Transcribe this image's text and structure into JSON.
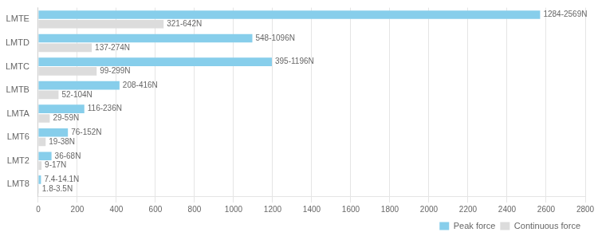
{
  "chart_data": {
    "type": "bar",
    "orientation": "horizontal",
    "categories": [
      "LMTE",
      "LMTD",
      "LMTC",
      "LMTB",
      "LMTA",
      "LMT6",
      "LMT2",
      "LMT8"
    ],
    "series": [
      {
        "name": "Peak force",
        "color": "#87CEEB",
        "values": [
          2569,
          1096,
          1196,
          416,
          236,
          152,
          68,
          14.1
        ],
        "value_labels": [
          "1284-2569N",
          "548-1096N",
          "395-1196N",
          "208-416N",
          "116-236N",
          "76-152N",
          "36-68N",
          "7.4-14.1N"
        ]
      },
      {
        "name": "Continuous force",
        "color": "#DCDCDC",
        "values": [
          642,
          274,
          299,
          104,
          59,
          38,
          17,
          3.5
        ],
        "value_labels": [
          "321-642N",
          "137-274N",
          "99-299N",
          "52-104N",
          "29-59N",
          "19-38N",
          "9-17N",
          "1.8-3.5N"
        ]
      }
    ],
    "xlim": [
      0,
      2800
    ],
    "xticks": [
      0,
      200,
      400,
      600,
      800,
      1000,
      1200,
      1400,
      1600,
      1800,
      2000,
      2200,
      2400,
      2600,
      2800
    ],
    "grid": "x",
    "legend": "lower right",
    "data_labels": true
  }
}
